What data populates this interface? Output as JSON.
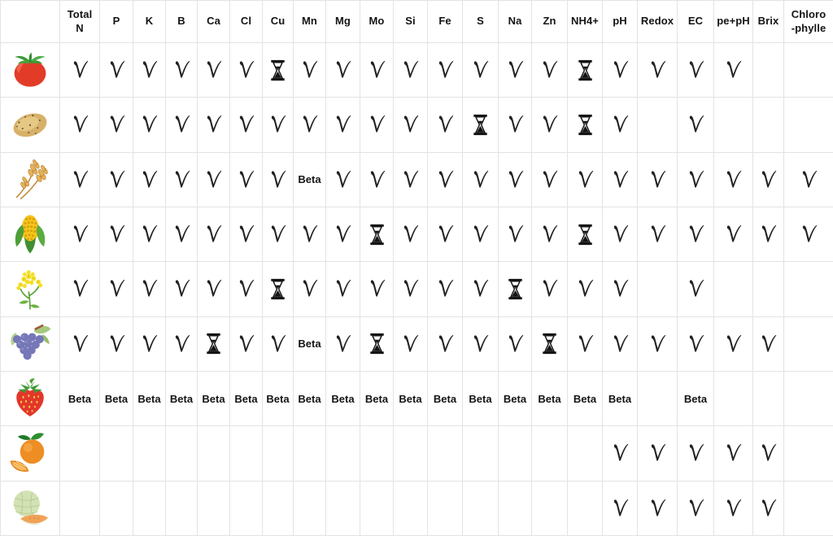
{
  "chart_data": {
    "type": "table",
    "title": "",
    "corner_label": "",
    "columns": [
      "Total\nN",
      "P",
      "K",
      "B",
      "Ca",
      "Cl",
      "Cu",
      "Mn",
      "Mg",
      "Mo",
      "Si",
      "Fe",
      "S",
      "Na",
      "Zn",
      "NH4+",
      "pH",
      "Redox",
      "EC",
      "pe+pH",
      "Brix",
      "Chloro\n-phylle"
    ],
    "beta_label": "Beta",
    "symbols": {
      "check": "handwritten-check-mark",
      "hourglass": "black-hourglass",
      "beta": "Beta",
      "": "empty"
    },
    "rows": [
      {
        "crop": "tomato",
        "icon": "tomato-icon",
        "cells": [
          "check",
          "check",
          "check",
          "check",
          "check",
          "check",
          "hourglass",
          "check",
          "check",
          "check",
          "check",
          "check",
          "check",
          "check",
          "check",
          "hourglass",
          "check",
          "check",
          "check",
          "check",
          "",
          ""
        ]
      },
      {
        "crop": "potato",
        "icon": "potato-icon",
        "cells": [
          "check",
          "check",
          "check",
          "check",
          "check",
          "check",
          "check",
          "check",
          "check",
          "check",
          "check",
          "check",
          "hourglass",
          "check",
          "check",
          "hourglass",
          "check",
          "",
          "check",
          "",
          "",
          ""
        ]
      },
      {
        "crop": "wheat",
        "icon": "wheat-icon",
        "cells": [
          "check",
          "check",
          "check",
          "check",
          "check",
          "check",
          "check",
          "beta",
          "check",
          "check",
          "check",
          "check",
          "check",
          "check",
          "check",
          "check",
          "check",
          "check",
          "check",
          "check",
          "check",
          "check"
        ]
      },
      {
        "crop": "corn",
        "icon": "corn-icon",
        "cells": [
          "check",
          "check",
          "check",
          "check",
          "check",
          "check",
          "check",
          "check",
          "check",
          "hourglass",
          "check",
          "check",
          "check",
          "check",
          "check",
          "hourglass",
          "check",
          "check",
          "check",
          "check",
          "check",
          "check"
        ]
      },
      {
        "crop": "rapeseed",
        "icon": "rapeseed-flower-icon",
        "cells": [
          "check",
          "check",
          "check",
          "check",
          "check",
          "check",
          "hourglass",
          "check",
          "check",
          "check",
          "check",
          "check",
          "check",
          "hourglass",
          "check",
          "check",
          "check",
          "",
          "check",
          "",
          "",
          ""
        ]
      },
      {
        "crop": "grape",
        "icon": "grape-icon",
        "cells": [
          "check",
          "check",
          "check",
          "check",
          "hourglass",
          "check",
          "check",
          "beta",
          "check",
          "hourglass",
          "check",
          "check",
          "check",
          "check",
          "hourglass",
          "check",
          "check",
          "check",
          "check",
          "check",
          "check",
          ""
        ]
      },
      {
        "crop": "strawberry",
        "icon": "strawberry-icon",
        "cells": [
          "beta",
          "beta",
          "beta",
          "beta",
          "beta",
          "beta",
          "beta",
          "beta",
          "beta",
          "beta",
          "beta",
          "beta",
          "beta",
          "beta",
          "beta",
          "beta",
          "beta",
          "",
          "beta",
          "",
          "",
          ""
        ]
      },
      {
        "crop": "orange",
        "icon": "orange-icon",
        "cells": [
          "",
          "",
          "",
          "",
          "",
          "",
          "",
          "",
          "",
          "",
          "",
          "",
          "",
          "",
          "",
          "",
          "check",
          "check",
          "check",
          "check",
          "check",
          ""
        ]
      },
      {
        "crop": "melon",
        "icon": "melon-icon",
        "cells": [
          "",
          "",
          "",
          "",
          "",
          "",
          "",
          "",
          "",
          "",
          "",
          "",
          "",
          "",
          "",
          "",
          "check",
          "check",
          "check",
          "check",
          "check",
          ""
        ]
      }
    ]
  },
  "style": {
    "background": "#ffffff",
    "grid_line_color": "#e3e3e3",
    "text_color": "#141414",
    "glyph_color": "#1f1f1f"
  }
}
